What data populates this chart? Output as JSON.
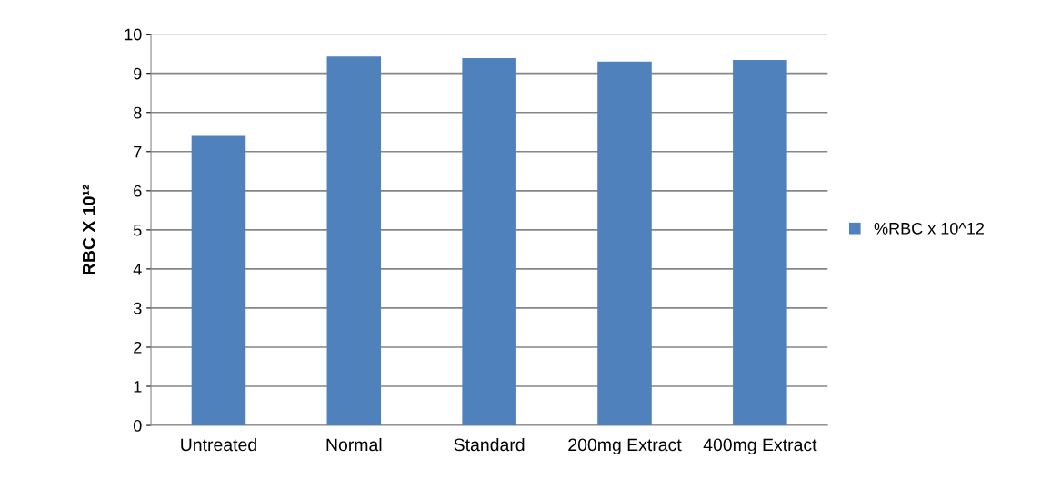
{
  "chart_data": {
    "type": "bar",
    "ylabel": "RBC X 10¹²",
    "categories": [
      "Untreated",
      "Normal",
      "Standard",
      "200mg Extract",
      "400mg Extract"
    ],
    "series": [
      {
        "name": "%RBC x 10^12",
        "color": "#4f81bd",
        "values": [
          7.4,
          9.43,
          9.39,
          9.3,
          9.34
        ]
      }
    ],
    "ylim": [
      0,
      10
    ],
    "yticks": [
      0,
      1,
      2,
      3,
      4,
      5,
      6,
      7,
      8,
      9,
      10
    ],
    "grid": "y",
    "legend": "right"
  }
}
